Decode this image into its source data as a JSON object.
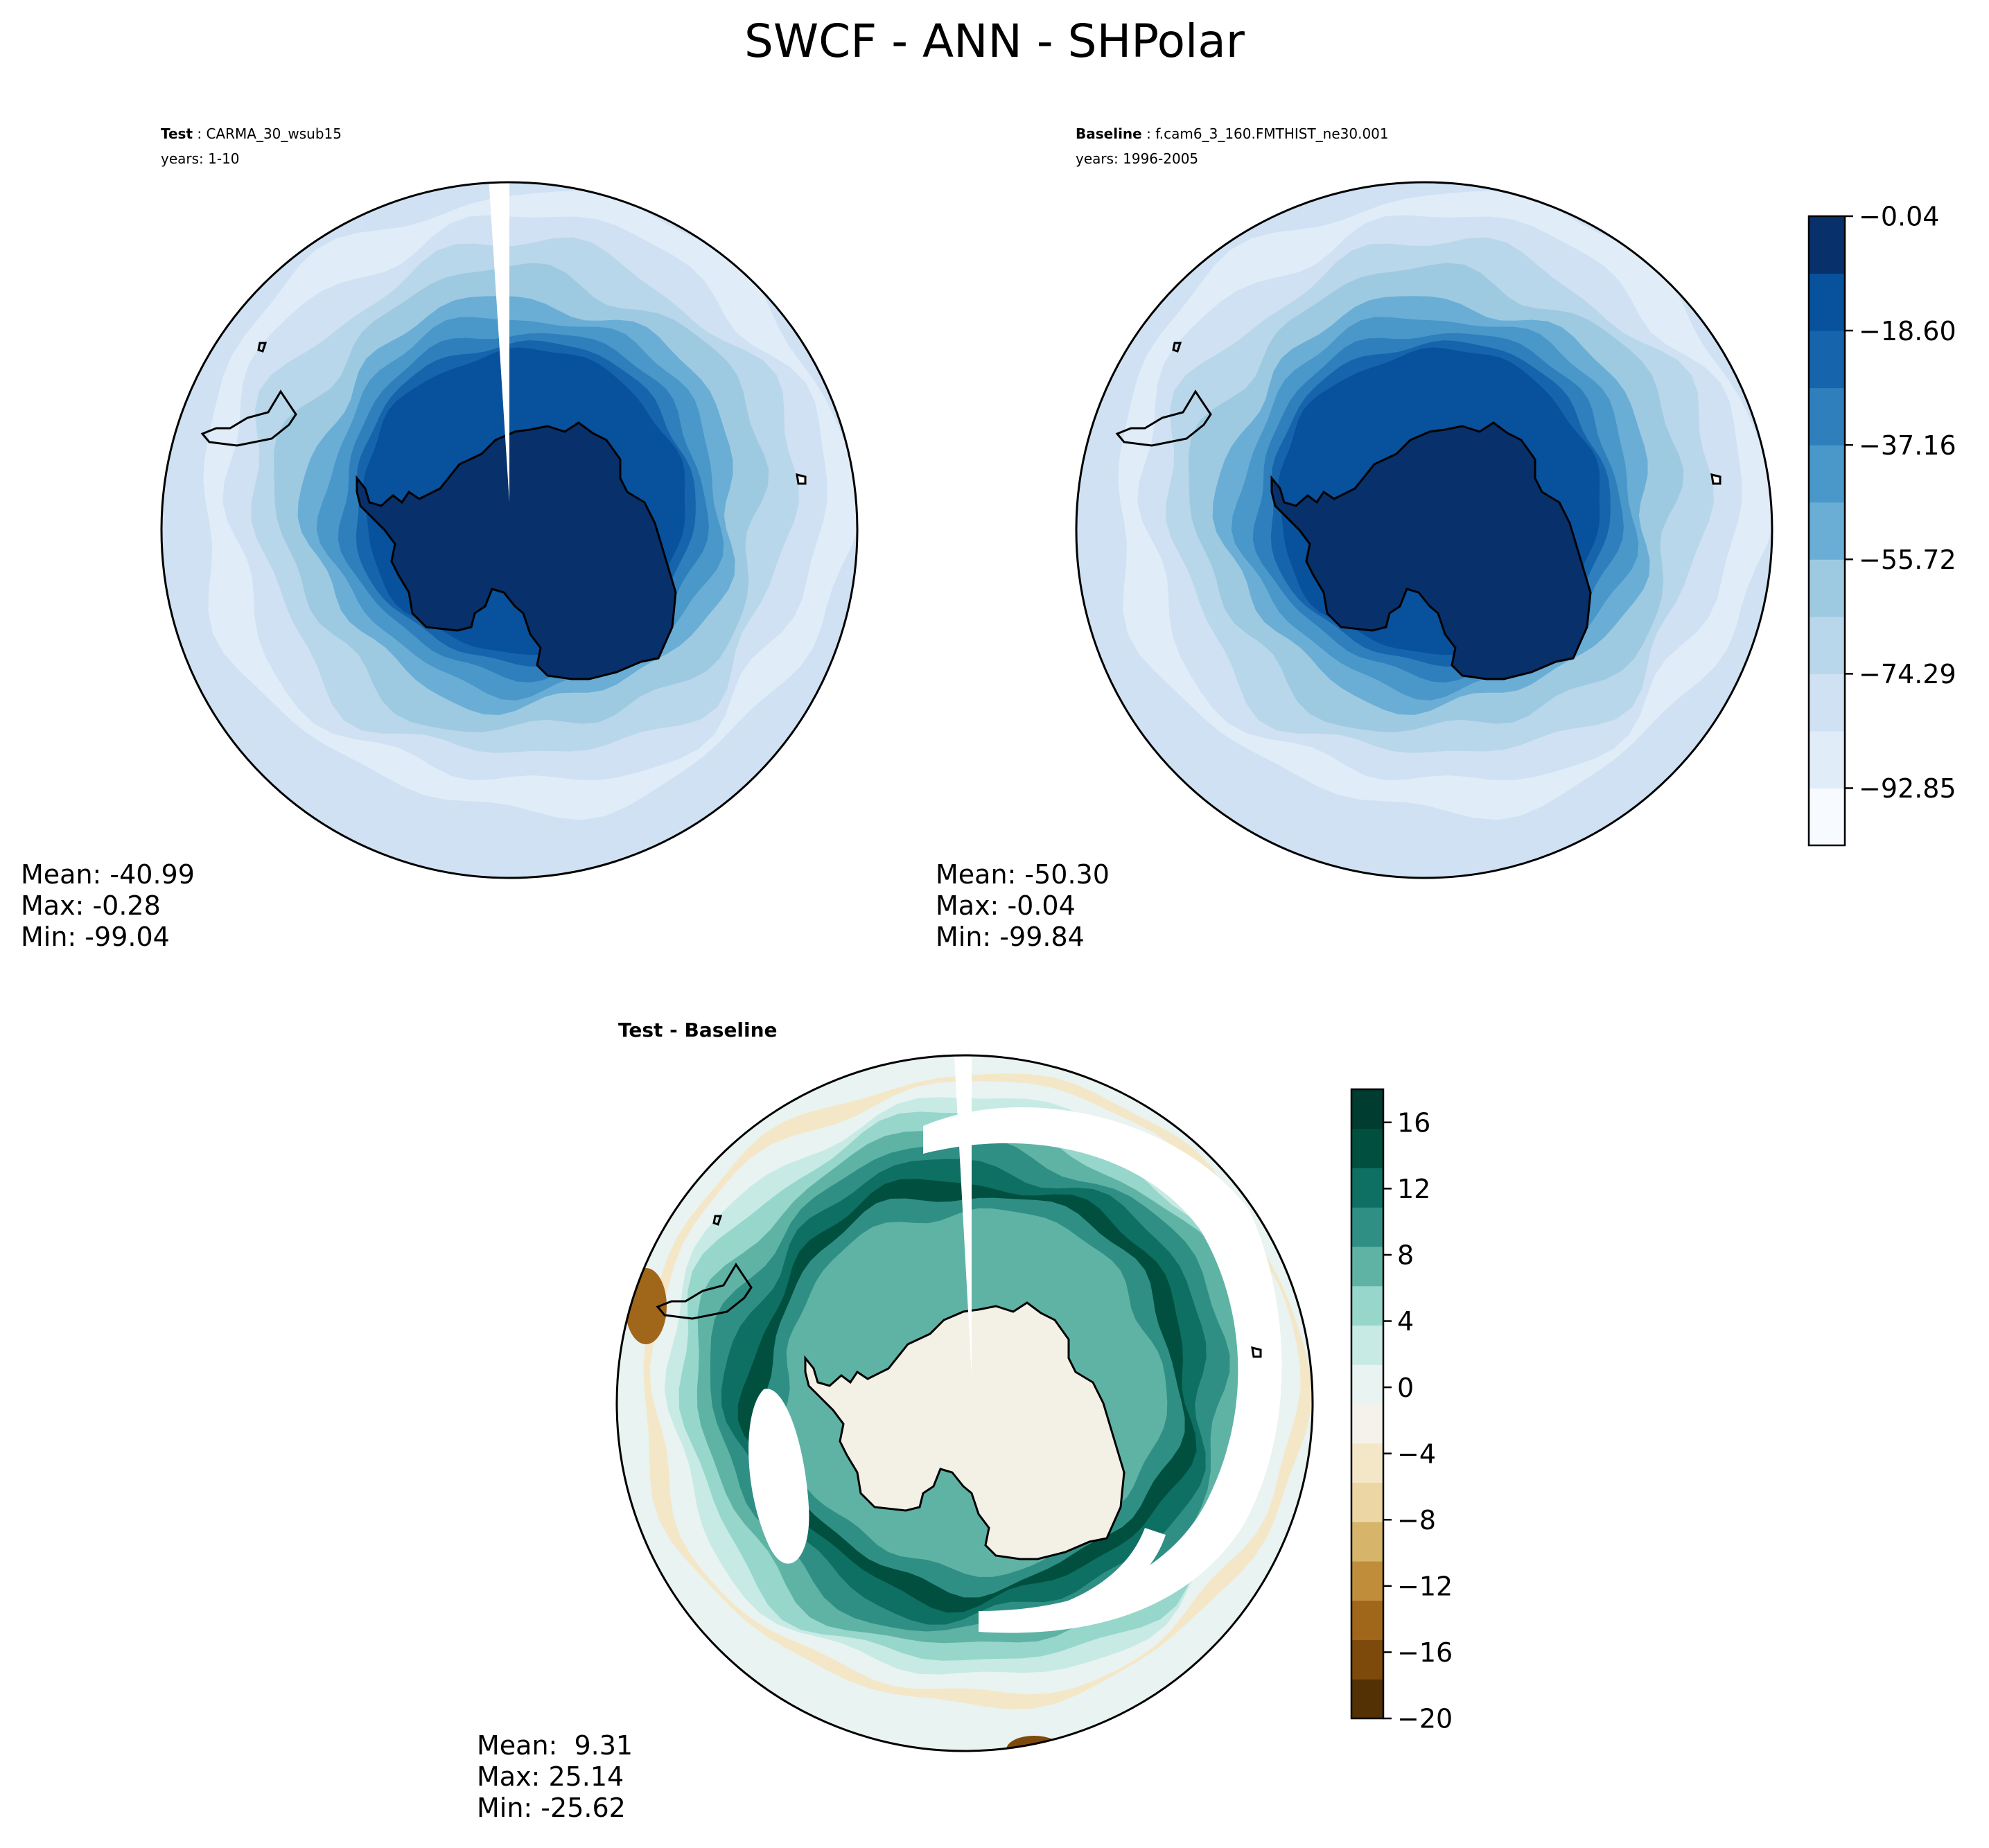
{
  "figure": {
    "title": "SWCF - ANN - SHPolar"
  },
  "colors": {
    "blues": [
      "#f7fbff",
      "#e0ecf8",
      "#cfe1f2",
      "#b9d7ea",
      "#9ecae1",
      "#6aaed6",
      "#4a97c9",
      "#2f7fbd",
      "#1664ab",
      "#08519c",
      "#08306b"
    ],
    "brbg": [
      "#543005",
      "#7d4a0b",
      "#a0661a",
      "#c08e3b",
      "#d6b56b",
      "#ebd6a4",
      "#f4e7c8",
      "#f4f2ea",
      "#e9f3f1",
      "#c7eae5",
      "#97d6cb",
      "#5fb3a5",
      "#2f8f84",
      "#0e6f63",
      "#01503f",
      "#003c30"
    ],
    "land_test": "#08306b",
    "land_diff": "#f3f0e6",
    "coast": "#000000"
  },
  "chart_data": [
    {
      "type": "heatmap",
      "panel": "test",
      "label_bold": "Test",
      "label_text": "CARMA_30_wsub15",
      "years": "years: 1-10",
      "stats": {
        "mean": "Mean: -40.99",
        "max": "Max: -0.28",
        "min": "Min: -99.04"
      },
      "colormap": "Blues_r",
      "projection": "south polar stereographic",
      "range": [
        -99.04,
        -0.28
      ]
    },
    {
      "type": "heatmap",
      "panel": "baseline",
      "label_bold": "Baseline",
      "label_text": "f.cam6_3_160.FMTHIST_ne30.001",
      "years": "years: 1996-2005",
      "stats": {
        "mean": "Mean: -50.30",
        "max": "Max: -0.04",
        "min": "Min: -99.84"
      },
      "colormap": "Blues_r",
      "projection": "south polar stereographic",
      "range": [
        -99.84,
        -0.04
      ]
    },
    {
      "type": "heatmap",
      "panel": "difference",
      "label_bold": "Test - Baseline",
      "stats": {
        "mean": "Mean:  9.31",
        "max": "Max: 25.14",
        "min": "Min: -25.62"
      },
      "colormap": "BrBG",
      "projection": "south polar stereographic",
      "range": [
        -25.62,
        25.14
      ]
    }
  ],
  "colorbars": {
    "main": {
      "ticks": [
        "−0.04",
        "−18.60",
        "−37.16",
        "−55.72",
        "−74.29",
        "−92.85"
      ],
      "tick_values": [
        -0.04,
        -18.6,
        -37.16,
        -55.72,
        -74.29,
        -92.85
      ],
      "range": [
        -102.13,
        -0.04
      ]
    },
    "diff": {
      "ticks": [
        "16",
        "12",
        "8",
        "4",
        "0",
        "−4",
        "−8",
        "−12",
        "−16",
        "−20"
      ],
      "tick_values": [
        16,
        12,
        8,
        4,
        0,
        -4,
        -8,
        -12,
        -16,
        -20
      ],
      "range": [
        -20,
        18
      ]
    }
  }
}
